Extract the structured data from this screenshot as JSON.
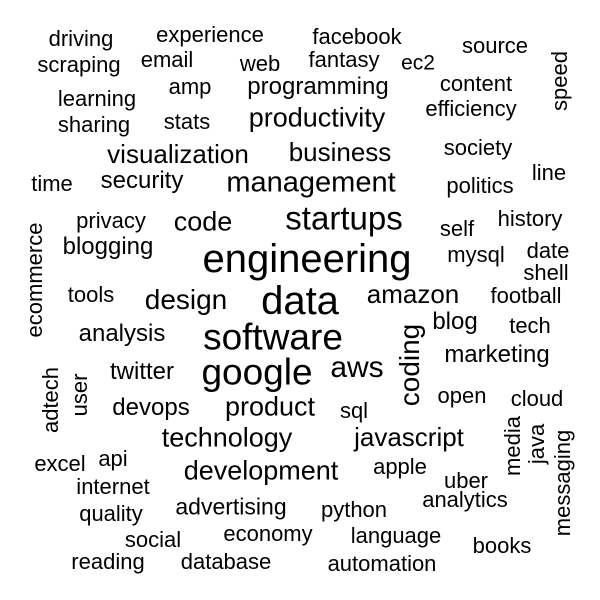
{
  "cloud": {
    "background": "#ffffff",
    "text_color": "#000000",
    "words": [
      {
        "text": "engineering",
        "weight": 10,
        "vertical": false
      },
      {
        "text": "data",
        "weight": 10,
        "vertical": false
      },
      {
        "text": "software",
        "weight": 9,
        "vertical": false
      },
      {
        "text": "google",
        "weight": 9,
        "vertical": false
      },
      {
        "text": "startups",
        "weight": 8,
        "vertical": false
      },
      {
        "text": "coding",
        "weight": 7,
        "vertical": true
      },
      {
        "text": "aws",
        "weight": 7,
        "vertical": false
      },
      {
        "text": "management",
        "weight": 7,
        "vertical": false
      },
      {
        "text": "productivity",
        "weight": 6,
        "vertical": false
      },
      {
        "text": "design",
        "weight": 6,
        "vertical": false
      },
      {
        "text": "amazon",
        "weight": 6,
        "vertical": false
      },
      {
        "text": "technology",
        "weight": 6,
        "vertical": false
      },
      {
        "text": "development",
        "weight": 6,
        "vertical": false
      },
      {
        "text": "product",
        "weight": 6,
        "vertical": false
      },
      {
        "text": "javascript",
        "weight": 6,
        "vertical": false
      },
      {
        "text": "business",
        "weight": 6,
        "vertical": false
      },
      {
        "text": "visualization",
        "weight": 6,
        "vertical": false
      },
      {
        "text": "code",
        "weight": 6,
        "vertical": false
      },
      {
        "text": "security",
        "weight": 5,
        "vertical": false
      },
      {
        "text": "analysis",
        "weight": 5,
        "vertical": false
      },
      {
        "text": "twitter",
        "weight": 5,
        "vertical": false
      },
      {
        "text": "devops",
        "weight": 5,
        "vertical": false
      },
      {
        "text": "marketing",
        "weight": 5,
        "vertical": false
      },
      {
        "text": "programming",
        "weight": 5,
        "vertical": false
      },
      {
        "text": "blogging",
        "weight": 5,
        "vertical": false
      },
      {
        "text": "advertising",
        "weight": 5,
        "vertical": false
      },
      {
        "text": "blog",
        "weight": 5,
        "vertical": false
      },
      {
        "text": "experience",
        "weight": 4,
        "vertical": false
      },
      {
        "text": "facebook",
        "weight": 4,
        "vertical": false
      },
      {
        "text": "fantasy",
        "weight": 4,
        "vertical": false
      },
      {
        "text": "web",
        "weight": 4,
        "vertical": false
      },
      {
        "text": "email",
        "weight": 4,
        "vertical": false
      },
      {
        "text": "ec2",
        "weight": 4,
        "vertical": false
      },
      {
        "text": "source",
        "weight": 4,
        "vertical": false
      },
      {
        "text": "content",
        "weight": 4,
        "vertical": false
      },
      {
        "text": "efficiency",
        "weight": 4,
        "vertical": false
      },
      {
        "text": "amp",
        "weight": 4,
        "vertical": false
      },
      {
        "text": "stats",
        "weight": 4,
        "vertical": false
      },
      {
        "text": "learning",
        "weight": 4,
        "vertical": false
      },
      {
        "text": "sharing",
        "weight": 4,
        "vertical": false
      },
      {
        "text": "driving",
        "weight": 4,
        "vertical": false
      },
      {
        "text": "scraping",
        "weight": 4,
        "vertical": false
      },
      {
        "text": "society",
        "weight": 4,
        "vertical": false
      },
      {
        "text": "politics",
        "weight": 4,
        "vertical": false
      },
      {
        "text": "line",
        "weight": 4,
        "vertical": false
      },
      {
        "text": "history",
        "weight": 4,
        "vertical": false
      },
      {
        "text": "self",
        "weight": 4,
        "vertical": false
      },
      {
        "text": "mysql",
        "weight": 4,
        "vertical": false
      },
      {
        "text": "date",
        "weight": 4,
        "vertical": false
      },
      {
        "text": "shell",
        "weight": 4,
        "vertical": false
      },
      {
        "text": "football",
        "weight": 4,
        "vertical": false
      },
      {
        "text": "tech",
        "weight": 4,
        "vertical": false
      },
      {
        "text": "open",
        "weight": 4,
        "vertical": false
      },
      {
        "text": "cloud",
        "weight": 4,
        "vertical": false
      },
      {
        "text": "sql",
        "weight": 4,
        "vertical": false
      },
      {
        "text": "privacy",
        "weight": 4,
        "vertical": false
      },
      {
        "text": "tools",
        "weight": 4,
        "vertical": false
      },
      {
        "text": "time",
        "weight": 4,
        "vertical": false
      },
      {
        "text": "apple",
        "weight": 4,
        "vertical": false
      },
      {
        "text": "uber",
        "weight": 4,
        "vertical": false
      },
      {
        "text": "analytics",
        "weight": 4,
        "vertical": false
      },
      {
        "text": "python",
        "weight": 4,
        "vertical": false
      },
      {
        "text": "economy",
        "weight": 4,
        "vertical": false
      },
      {
        "text": "language",
        "weight": 4,
        "vertical": false
      },
      {
        "text": "books",
        "weight": 4,
        "vertical": false
      },
      {
        "text": "social",
        "weight": 4,
        "vertical": false
      },
      {
        "text": "quality",
        "weight": 4,
        "vertical": false
      },
      {
        "text": "internet",
        "weight": 4,
        "vertical": false
      },
      {
        "text": "excel",
        "weight": 4,
        "vertical": false
      },
      {
        "text": "api",
        "weight": 4,
        "vertical": false
      },
      {
        "text": "reading",
        "weight": 4,
        "vertical": false
      },
      {
        "text": "database",
        "weight": 4,
        "vertical": false
      },
      {
        "text": "automation",
        "weight": 4,
        "vertical": false
      },
      {
        "text": "speed",
        "weight": 4,
        "vertical": true
      },
      {
        "text": "ecommerce",
        "weight": 4,
        "vertical": true
      },
      {
        "text": "adtech",
        "weight": 4,
        "vertical": true
      },
      {
        "text": "user",
        "weight": 4,
        "vertical": true
      },
      {
        "text": "media",
        "weight": 4,
        "vertical": true
      },
      {
        "text": "java",
        "weight": 4,
        "vertical": true
      },
      {
        "text": "messaging",
        "weight": 4,
        "vertical": true
      }
    ]
  }
}
